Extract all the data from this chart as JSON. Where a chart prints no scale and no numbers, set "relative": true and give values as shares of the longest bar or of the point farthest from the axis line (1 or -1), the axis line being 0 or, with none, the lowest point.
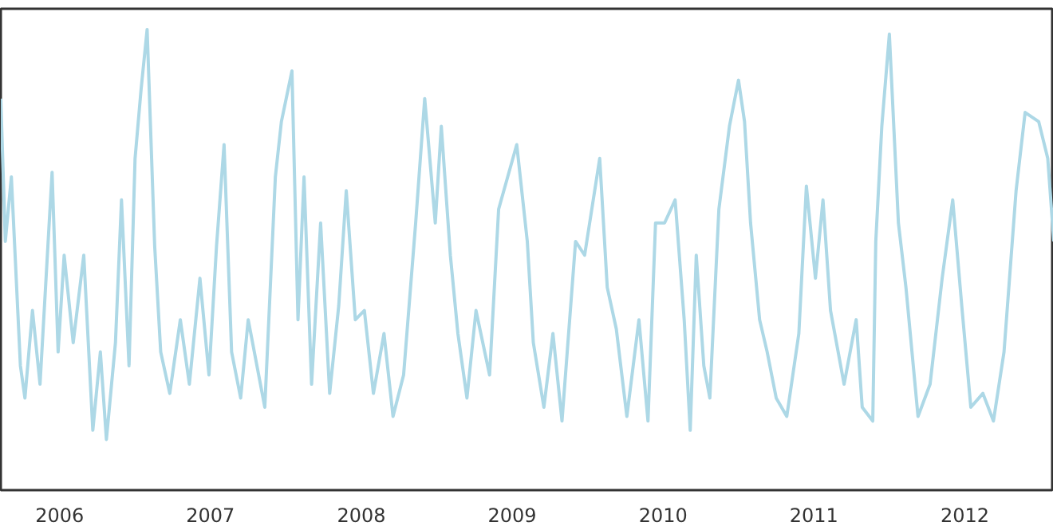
{
  "chart_data": {
    "type": "line",
    "relative": true,
    "grid": false,
    "xlim": [
      2005.61,
      2012.59
    ],
    "xticks": [
      2006,
      2007,
      2008,
      2009,
      2010,
      2011,
      2012
    ],
    "tick_labels": "x",
    "series": [
      {
        "color": "#add8e6",
        "x": [
          2005.61,
          2005.64,
          2005.68,
          2005.74,
          2005.77,
          2005.82,
          2005.87,
          2005.95,
          2005.99,
          2006.03,
          2006.09,
          2006.16,
          2006.22,
          2006.27,
          2006.31,
          2006.37,
          2006.41,
          2006.46,
          2006.5,
          2006.54,
          2006.58,
          2006.63,
          2006.67,
          2006.73,
          2006.8,
          2006.86,
          2006.93,
          2006.99,
          2007.04,
          2007.09,
          2007.14,
          2007.2,
          2007.25,
          2007.36,
          2007.43,
          2007.47,
          2007.54,
          2007.58,
          2007.62,
          2007.67,
          2007.73,
          2007.79,
          2007.85,
          2007.9,
          2007.96,
          2008.02,
          2008.08,
          2008.15,
          2008.21,
          2008.28,
          2008.36,
          2008.42,
          2008.49,
          2008.53,
          2008.59,
          2008.64,
          2008.7,
          2008.76,
          2008.85,
          2008.91,
          2008.97,
          2009.03,
          2009.1,
          2009.14,
          2009.21,
          2009.27,
          2009.33,
          2009.42,
          2009.48,
          2009.58,
          2009.63,
          2009.69,
          2009.76,
          2009.84,
          2009.9,
          2009.95,
          2010.01,
          2010.08,
          2010.14,
          2010.18,
          2010.22,
          2010.27,
          2010.31,
          2010.37,
          2010.44,
          2010.5,
          2010.54,
          2010.58,
          2010.64,
          2010.69,
          2010.75,
          2010.82,
          2010.9,
          2010.95,
          2011.01,
          2011.06,
          2011.11,
          2011.2,
          2011.28,
          2011.32,
          2011.39,
          2011.41,
          2011.45,
          2011.5,
          2011.56,
          2011.61,
          2011.69,
          2011.77,
          2011.85,
          2011.92,
          2011.98,
          2012.04,
          2012.12,
          2012.19,
          2012.26,
          2012.34,
          2012.4,
          2012.49,
          2012.55,
          2012.59
        ],
        "values": [
          0.85,
          0.54,
          0.68,
          0.27,
          0.2,
          0.39,
          0.23,
          0.69,
          0.3,
          0.51,
          0.32,
          0.51,
          0.13,
          0.3,
          0.11,
          0.32,
          0.63,
          0.27,
          0.72,
          0.87,
          1.0,
          0.53,
          0.3,
          0.21,
          0.37,
          0.23,
          0.46,
          0.25,
          0.53,
          0.75,
          0.3,
          0.2,
          0.37,
          0.18,
          0.68,
          0.8,
          0.91,
          0.37,
          0.68,
          0.23,
          0.58,
          0.21,
          0.4,
          0.65,
          0.37,
          0.39,
          0.21,
          0.34,
          0.16,
          0.25,
          0.58,
          0.85,
          0.58,
          0.79,
          0.51,
          0.34,
          0.2,
          0.39,
          0.25,
          0.61,
          0.68,
          0.75,
          0.54,
          0.32,
          0.18,
          0.34,
          0.15,
          0.54,
          0.51,
          0.72,
          0.44,
          0.35,
          0.16,
          0.37,
          0.15,
          0.58,
          0.58,
          0.63,
          0.37,
          0.13,
          0.51,
          0.27,
          0.2,
          0.61,
          0.79,
          0.89,
          0.8,
          0.58,
          0.37,
          0.3,
          0.2,
          0.16,
          0.34,
          0.66,
          0.46,
          0.63,
          0.39,
          0.23,
          0.37,
          0.18,
          0.15,
          0.54,
          0.79,
          0.99,
          0.58,
          0.44,
          0.16,
          0.23,
          0.46,
          0.63,
          0.4,
          0.18,
          0.21,
          0.15,
          0.3,
          0.65,
          0.82,
          0.8,
          0.72,
          0.54
        ]
      }
    ]
  }
}
